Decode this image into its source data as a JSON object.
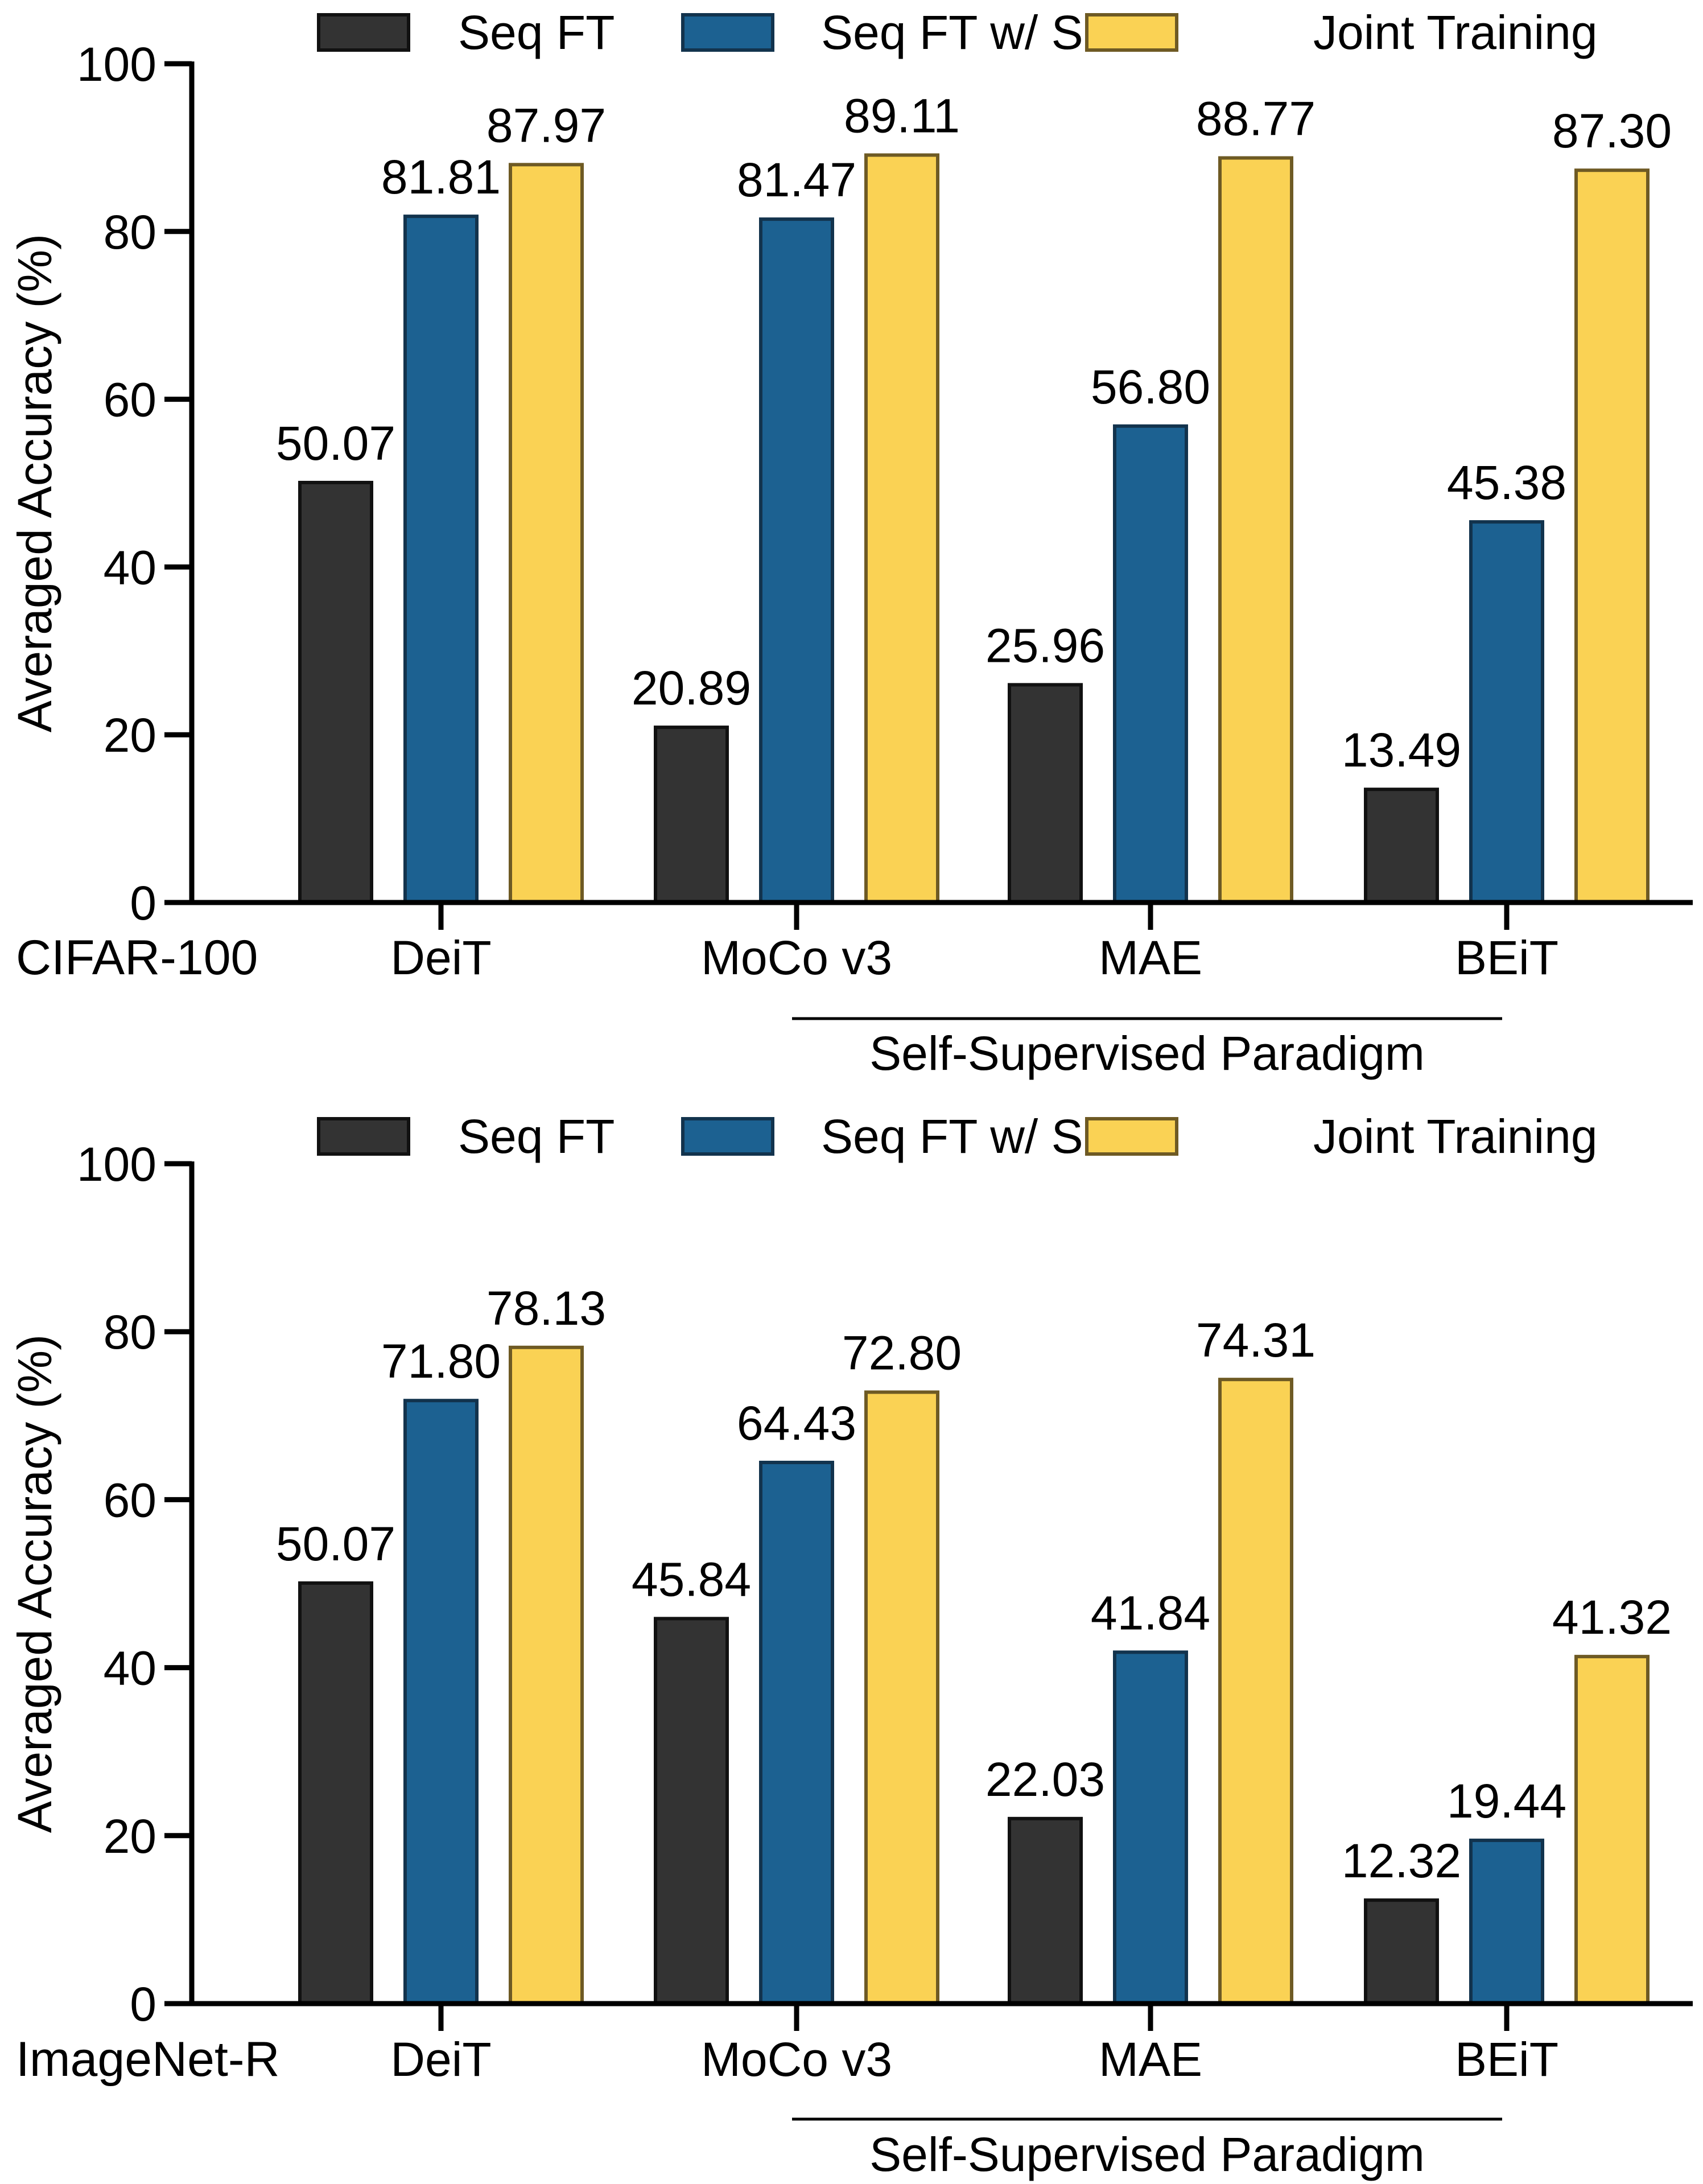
{
  "legend": {
    "items": [
      {
        "label": "Seq FT",
        "color": "#333333",
        "stroke": "#111111"
      },
      {
        "label": "Seq FT w/ SL",
        "color": "#1c6191",
        "stroke": "#12334d"
      },
      {
        "label": "Joint Training",
        "color": "#fad254",
        "stroke": "#6e5a24"
      }
    ]
  },
  "chart_data": [
    {
      "type": "bar",
      "dataset": "CIFAR-100",
      "ylabel": "Averaged Accuracy (%)",
      "ylim": [
        0,
        100
      ],
      "yticks": [
        "0",
        "20",
        "40",
        "60",
        "80",
        "100"
      ],
      "categories": [
        "DeiT",
        "MoCo v3",
        "MAE",
        "BEiT"
      ],
      "group_annotation": {
        "label": "Self-Supervised Paradigm",
        "spans": [
          "MoCo v3",
          "BEiT"
        ]
      },
      "series": [
        {
          "name": "Seq FT",
          "values": [
            50.07,
            20.89,
            25.96,
            13.49
          ],
          "labels": [
            "50.07",
            "20.89",
            "25.96",
            "13.49"
          ]
        },
        {
          "name": "Seq FT w/ SL",
          "values": [
            81.81,
            81.47,
            56.8,
            45.38
          ],
          "labels": [
            "81.81",
            "81.47",
            "56.80",
            "45.38"
          ]
        },
        {
          "name": "Joint Training",
          "values": [
            87.97,
            89.11,
            88.77,
            87.3
          ],
          "labels": [
            "87.97",
            "89.11",
            "88.77",
            "87.30"
          ]
        }
      ]
    },
    {
      "type": "bar",
      "dataset": "ImageNet-R",
      "ylabel": "Averaged Accuracy (%)",
      "ylim": [
        0,
        100
      ],
      "yticks": [
        "0",
        "20",
        "40",
        "60",
        "80",
        "100"
      ],
      "categories": [
        "DeiT",
        "MoCo v3",
        "MAE",
        "BEiT"
      ],
      "group_annotation": {
        "label": "Self-Supervised Paradigm",
        "spans": [
          "MoCo v3",
          "BEiT"
        ]
      },
      "series": [
        {
          "name": "Seq FT",
          "values": [
            50.07,
            45.84,
            22.03,
            12.32
          ],
          "labels": [
            "50.07",
            "45.84",
            "22.03",
            "12.32"
          ]
        },
        {
          "name": "Seq FT w/ SL",
          "values": [
            71.8,
            64.43,
            41.84,
            19.44
          ],
          "labels": [
            "71.80",
            "64.43",
            "41.84",
            "19.44"
          ]
        },
        {
          "name": "Joint Training",
          "values": [
            78.13,
            72.8,
            74.31,
            41.32
          ],
          "labels": [
            "78.13",
            "72.80",
            "74.31",
            "41.32"
          ]
        }
      ]
    }
  ]
}
